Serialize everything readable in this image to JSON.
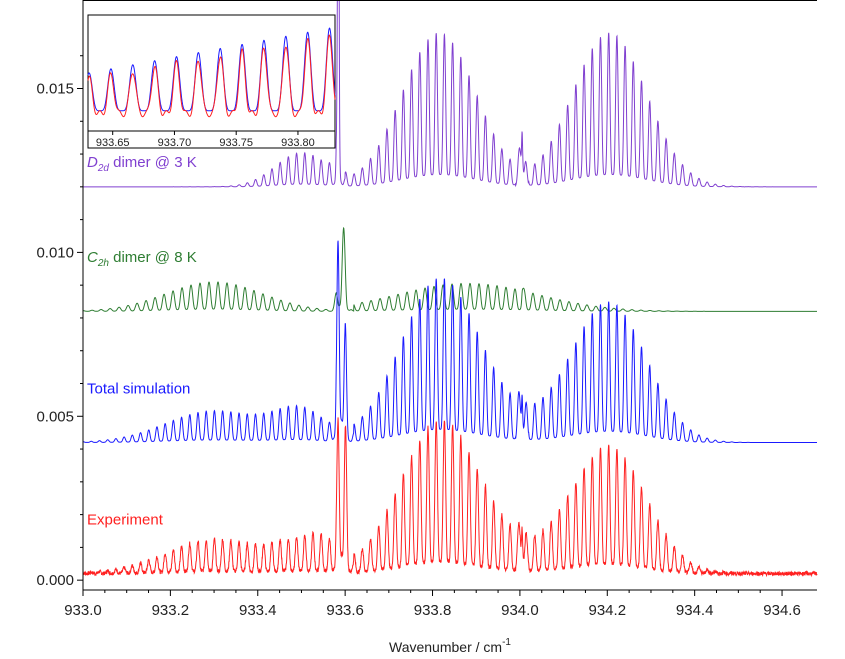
{
  "chart_data": {
    "type": "line",
    "xlabel": "Wavenumber / cm",
    "xlabel_superscript": "-1",
    "xlim": [
      933.0,
      934.68
    ],
    "ylim": [
      -0.0003,
      0.0177
    ],
    "x_ticks": [
      "933.0",
      "933.2",
      "933.4",
      "933.6",
      "933.8",
      "934.0",
      "934.2",
      "934.4",
      "934.6"
    ],
    "y_ticks": [
      "0.000",
      "0.005",
      "0.010",
      "0.015"
    ],
    "grid": false,
    "legend": "none",
    "series": [
      {
        "color": "#8040d0",
        "offset": 0.012,
        "peak_amplitude": 0.0047,
        "envelope_centers": [
          933.82,
          934.2
        ]
      },
      {
        "color": "#2e7d32",
        "offset": 0.0082,
        "peak_amplitude": 0.0009,
        "envelope_centers": [
          933.3,
          933.88
        ]
      },
      {
        "color": "#1a1aff",
        "offset": 0.0042,
        "peak_amplitude": 0.0044,
        "envelope_centers": [
          933.82,
          934.21
        ]
      },
      {
        "color": "#ff2020",
        "offset": 0.0002,
        "peak_amplitude": 0.0042,
        "envelope_centers": [
          933.83,
          934.22
        ]
      }
    ],
    "annotations": [
      {
        "main": "D",
        "sub": "2d",
        "rest": " dimer @ 3 K",
        "color": "#8040d0",
        "x": 933.0,
        "y": 0.0126
      },
      {
        "main": "C",
        "sub": "2h",
        "rest": " dimer @ 8 K",
        "color": "#2e7d32",
        "x": 933.0,
        "y": 0.0097
      },
      {
        "main": "Total simulation",
        "sub": "",
        "rest": "",
        "color": "#1a1aff",
        "x": 933.0,
        "y": 0.0057
      },
      {
        "main": "Experiment",
        "sub": "",
        "rest": "",
        "color": "#ff2020",
        "x": 933.0,
        "y": 0.0017
      }
    ],
    "strong_lines": [
      933.585,
      934.005
    ],
    "inset": {
      "xlim": [
        933.63,
        933.83
      ],
      "x_ticks": [
        "933.65",
        "933.70",
        "933.75",
        "933.80"
      ],
      "series_colors": [
        "#1a1aff",
        "#ff2020"
      ]
    }
  }
}
